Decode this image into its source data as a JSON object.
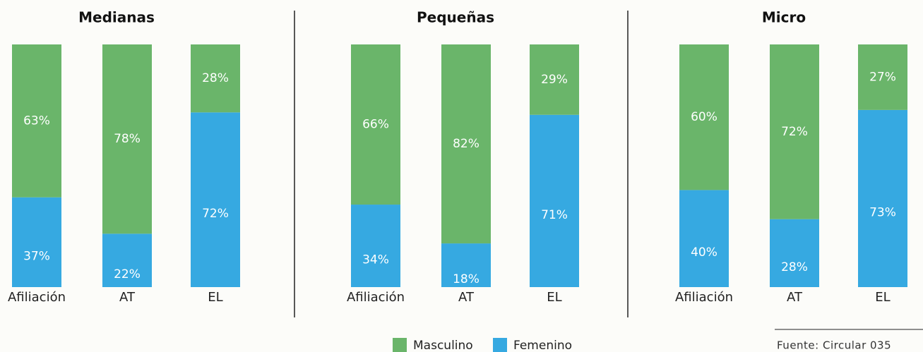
{
  "chart_data": {
    "type": "bar",
    "stacked": true,
    "ylim": [
      0,
      100
    ],
    "series": [
      {
        "name": "Masculino",
        "color": "#6ab56a"
      },
      {
        "name": "Femenino",
        "color": "#36a9e1"
      }
    ],
    "panels": [
      {
        "title": "Medianas",
        "categories": [
          "Afiliación",
          "AT",
          "EL"
        ],
        "values": [
          [
            63,
            78,
            28
          ],
          [
            37,
            22,
            72
          ]
        ],
        "value_labels": [
          [
            "63%",
            "78%",
            "28%"
          ],
          [
            "37%",
            "22%",
            "72%"
          ]
        ]
      },
      {
        "title": "Pequeñas",
        "categories": [
          "Afiliación",
          "AT",
          "EL"
        ],
        "values": [
          [
            66,
            82,
            29
          ],
          [
            34,
            18,
            71
          ]
        ],
        "value_labels": [
          [
            "66%",
            "82%",
            "29%"
          ],
          [
            "34%",
            "18%",
            "71%"
          ]
        ]
      },
      {
        "title": "Micro",
        "categories": [
          "Afiliación",
          "AT",
          "EL"
        ],
        "values": [
          [
            60,
            72,
            27
          ],
          [
            40,
            28,
            73
          ]
        ],
        "value_labels": [
          [
            "60%",
            "72%",
            "27%"
          ],
          [
            "40%",
            "28%",
            "73%"
          ]
        ]
      }
    ],
    "source": "Fuente: Circular 035"
  }
}
